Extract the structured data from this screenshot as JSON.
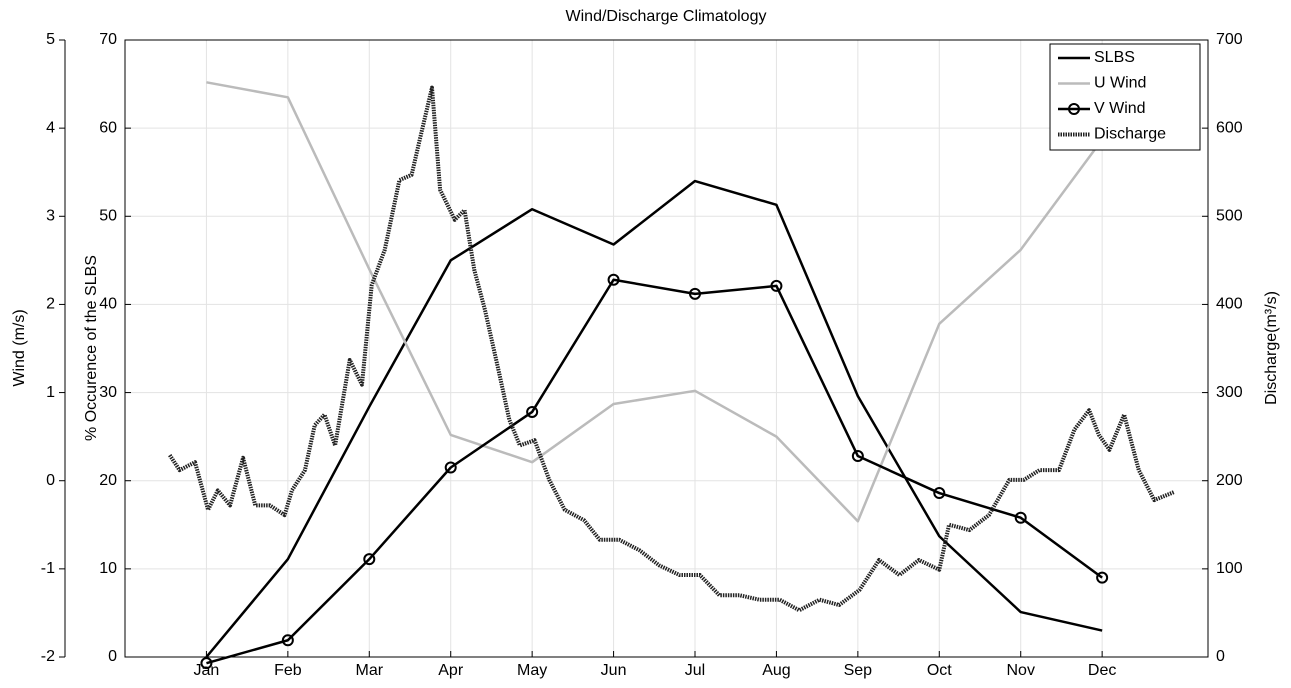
{
  "chart_data": {
    "type": "line",
    "title": "Wind/Discharge Climatology",
    "ylabel": "% Occurence of the SLBS",
    "y2label": "Discharge(m³/s)",
    "y3label": "Wind (m/s)",
    "x": [
      1,
      2,
      3,
      4,
      5,
      6,
      7,
      8,
      9,
      10,
      11,
      12
    ],
    "xlim": [
      0,
      13.3
    ],
    "xticks": [
      {
        "value": 1,
        "label": "Jan"
      },
      {
        "value": 2,
        "label": "Feb"
      },
      {
        "value": 3,
        "label": "Mar"
      },
      {
        "value": 4,
        "label": "Apr"
      },
      {
        "value": 5,
        "label": "May"
      },
      {
        "value": 6,
        "label": "Jun"
      },
      {
        "value": 7,
        "label": "Jul"
      },
      {
        "value": 8,
        "label": "Aug"
      },
      {
        "value": 9,
        "label": "Sep"
      },
      {
        "value": 10,
        "label": "Oct"
      },
      {
        "value": 11,
        "label": "Nov"
      },
      {
        "value": 12,
        "label": "Dec"
      }
    ],
    "ylim": [
      0,
      70
    ],
    "yticks": [
      0,
      10,
      20,
      30,
      40,
      50,
      60,
      70
    ],
    "y2lim": [
      0,
      700
    ],
    "y2ticks": [
      0,
      100,
      200,
      300,
      400,
      500,
      600,
      700
    ],
    "y3lim": [
      -2,
      5
    ],
    "y3ticks": [
      -2,
      -1,
      0,
      1,
      2,
      3,
      4,
      5
    ],
    "grid": true,
    "legend": "upper right",
    "series": [
      {
        "name": "SLBS",
        "color": "#000000",
        "axis": "y",
        "values": [
          0,
          11.1,
          28.4,
          45,
          50.8,
          46.8,
          54,
          51.3,
          29.6,
          13.7,
          5.1,
          3
        ]
      },
      {
        "name": "U Wind",
        "color": "#bbbbbb",
        "axis": "y3",
        "values": [
          4.52,
          4.35,
          2.4,
          0.52,
          0.21,
          0.87,
          1.02,
          0.5,
          -0.46,
          1.78,
          2.62,
          3.87
        ]
      },
      {
        "name": "V Wind",
        "color": "#000000",
        "axis": "y3",
        "marker": "o",
        "values": [
          -2.07,
          -1.81,
          -0.89,
          0.15,
          0.78,
          2.28,
          2.12,
          2.21,
          0.28,
          -0.14,
          -0.42,
          -1.1
        ]
      },
      {
        "name": "Discharge",
        "color": "#222222",
        "axis": "y2",
        "linestyle": "dotted-thick",
        "x": [
          0.55,
          0.67,
          0.86,
          1.02,
          1.14,
          1.29,
          1.45,
          1.6,
          1.78,
          1.96,
          2.05,
          2.21,
          2.33,
          2.45,
          2.58,
          2.76,
          2.91,
          3.03,
          3.19,
          3.37,
          3.52,
          3.62,
          3.77,
          3.87,
          4.05,
          4.17,
          4.29,
          4.42,
          4.6,
          4.72,
          4.85,
          5.03,
          5.21,
          5.4,
          5.64,
          5.83,
          6.07,
          6.32,
          6.56,
          6.81,
          7.06,
          7.3,
          7.55,
          7.79,
          8.04,
          8.28,
          8.53,
          8.77,
          9.02,
          9.26,
          9.51,
          9.75,
          10,
          10.12,
          10.37,
          10.61,
          10.86,
          11.04,
          11.23,
          11.47,
          11.66,
          11.84,
          11.96,
          12.09,
          12.27,
          12.45,
          12.64,
          12.88
        ],
        "values": [
          229,
          212,
          221,
          167,
          189,
          172,
          226,
          172,
          172,
          161,
          189,
          212,
          263,
          275,
          240,
          337,
          309,
          422,
          462,
          541,
          547,
          587,
          646,
          530,
          496,
          507,
          439,
          394,
          320,
          269,
          240,
          246,
          201,
          167,
          155,
          133,
          133,
          121,
          104,
          93,
          93,
          70,
          70,
          65,
          65,
          53,
          65,
          59,
          76,
          110,
          93,
          110,
          99,
          150,
          144,
          161,
          201,
          201,
          212,
          212,
          258,
          280,
          252,
          235,
          275,
          212,
          178,
          187
        ]
      }
    ]
  }
}
